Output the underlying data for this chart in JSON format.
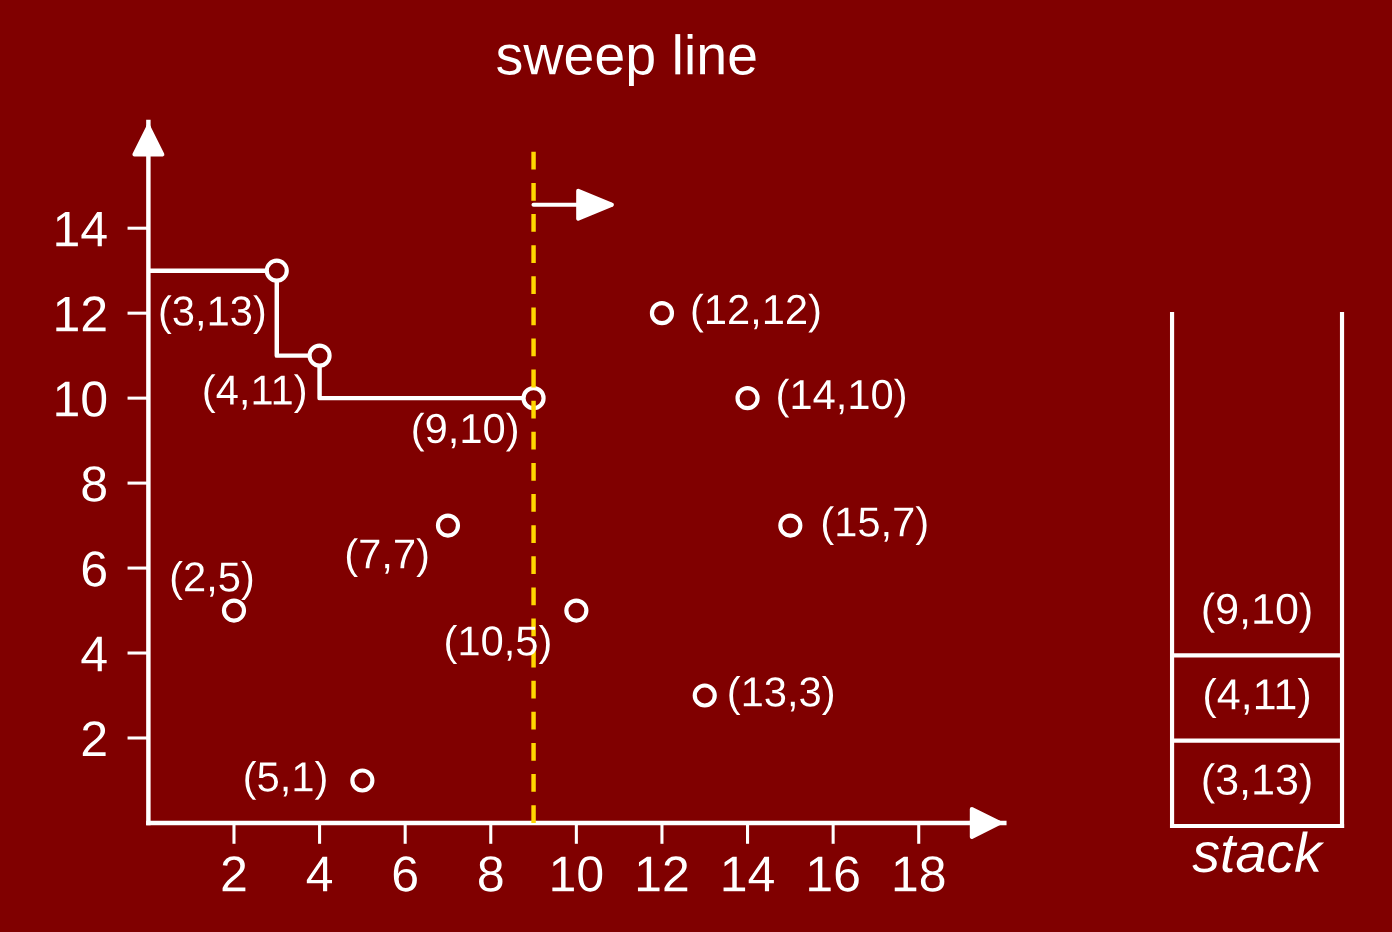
{
  "chart_data": [
    {
      "type": "scatter",
      "xlim": [
        0,
        20
      ],
      "ylim": [
        0,
        16.5
      ],
      "xticks": [
        2,
        4,
        6,
        8,
        10,
        12,
        14,
        16,
        18
      ],
      "yticks": [
        2,
        4,
        6,
        8,
        10,
        12,
        14
      ],
      "series": [
        {
          "type": "step",
          "color": "#ffffff",
          "marker": "none",
          "x": [
            0,
            3,
            4,
            9
          ],
          "values": [
            13,
            11,
            10,
            10
          ]
        },
        {
          "type": "scatter",
          "color": "#ffffff",
          "marker": "circle",
          "x": [
            2,
            3,
            4,
            5,
            7,
            9,
            10,
            12,
            13,
            14,
            15
          ],
          "values": [
            5,
            13,
            11,
            1,
            7,
            10,
            5,
            12,
            3,
            10,
            7
          ]
        }
      ],
      "annotations": [
        {
          "text": "(2,5)",
          "x": 2,
          "y": 5
        },
        {
          "text": "(3,13)",
          "x": 3,
          "y": 13
        },
        {
          "text": "(4,11)",
          "x": 4,
          "y": 11
        },
        {
          "text": "(5,1)",
          "x": 5,
          "y": 1
        },
        {
          "text": "(7,7)",
          "x": 7,
          "y": 7
        },
        {
          "text": "(9,10)",
          "x": 9,
          "y": 10
        },
        {
          "text": "(10,5)",
          "x": 10,
          "y": 5
        },
        {
          "text": "(12,12)",
          "x": 12,
          "y": 12
        },
        {
          "text": "(13,3)",
          "x": 13,
          "y": 3
        },
        {
          "text": "(14,10)",
          "x": 14,
          "y": 10
        },
        {
          "text": "(15,7)",
          "x": 15,
          "y": 7
        }
      ],
      "ref_lines": [
        {
          "axis": "x",
          "value": 9,
          "label": "sweep line",
          "color": "#ffd700",
          "line_style": "dashed"
        }
      ]
    },
    {
      "type": "other",
      "annotations": [
        "(9,10)",
        "(4,11)",
        "(3,13)"
      ],
      "xlabel": "stack"
    }
  ]
}
